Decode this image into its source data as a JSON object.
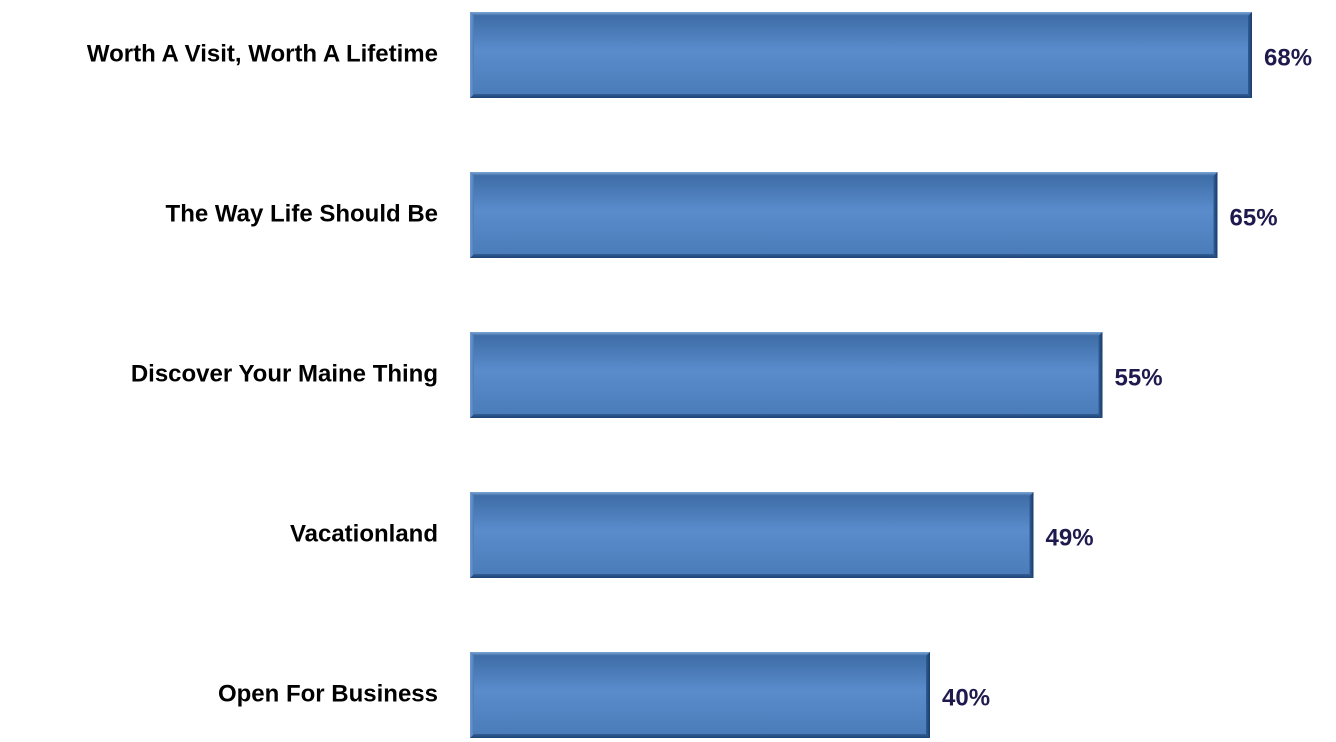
{
  "chart_data": {
    "type": "bar",
    "orientation": "horizontal",
    "categories": [
      "Worth A Visit, Worth A Lifetime",
      "The Way Life Should Be",
      "Discover Your Maine Thing",
      "Vacationland",
      "Open For Business"
    ],
    "values": [
      68,
      65,
      55,
      49,
      40
    ],
    "value_labels": [
      "68%",
      "65%",
      "55%",
      "49%",
      "40%"
    ],
    "unit": "%",
    "title": "",
    "xlabel": "",
    "ylabel": "",
    "xlim": [
      0,
      68
    ],
    "grid": false,
    "legend": "none"
  },
  "colors": {
    "bar_fill": "#4f81bd",
    "bar_dark": "#2c5a8e",
    "bar_light": "#6f9bd0",
    "category_text": "#000000",
    "value_text": "#1f1a4d"
  }
}
